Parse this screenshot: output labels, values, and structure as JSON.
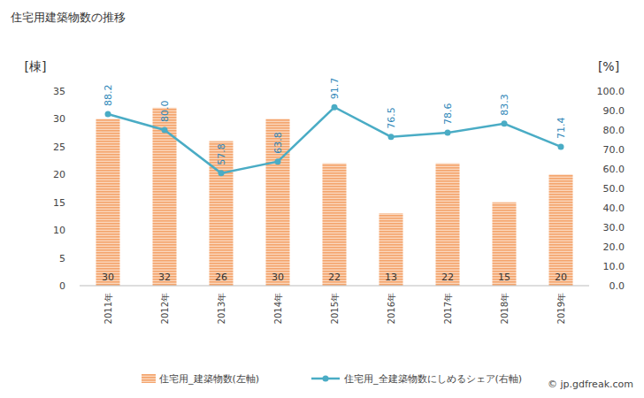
{
  "chart_data": {
    "type": "bar",
    "title": "住宅用建築物数の推移",
    "y_label": "[棟]",
    "y2_label": "[%]",
    "categories": [
      "2011年",
      "2012年",
      "2013年",
      "2014年",
      "2015年",
      "2016年",
      "2017年",
      "2018年",
      "2019年"
    ],
    "series": [
      {
        "name": "住宅用_建築物数(左軸)",
        "type": "bar",
        "color": "#f4a46c",
        "data_labels": true,
        "values": [
          30,
          32,
          26,
          30,
          22,
          13,
          22,
          15,
          20
        ]
      },
      {
        "name": "住宅用_全建築物数にしめるシェア(右軸)",
        "type": "line",
        "color": "#4aacc5",
        "marker": "circle",
        "axis": "y2",
        "data_labels": true,
        "values": [
          88.2,
          80.0,
          57.8,
          63.8,
          91.7,
          76.5,
          78.6,
          83.3,
          71.4
        ],
        "value_labels": [
          "88.2",
          "80.0",
          "57.8",
          "63.8",
          "91.7",
          "76.5",
          "78.6",
          "83.3",
          "71.4"
        ]
      }
    ],
    "ylim": [
      0,
      35
    ],
    "yticks": [
      0,
      5,
      10,
      15,
      20,
      25,
      30,
      35
    ],
    "y2lim": [
      0,
      100
    ],
    "y2ticks": [
      {
        "value": 0,
        "label": "0.0"
      },
      {
        "value": 10,
        "label": "10.0"
      },
      {
        "value": 20,
        "label": "20.0"
      },
      {
        "value": 30,
        "label": "30.0"
      },
      {
        "value": 40,
        "label": "40.0"
      },
      {
        "value": 50,
        "label": "50.0"
      },
      {
        "value": 60,
        "label": "60.0"
      },
      {
        "value": 70,
        "label": "70.0"
      },
      {
        "value": 80,
        "label": "80.0"
      },
      {
        "value": 90,
        "label": "90.0"
      },
      {
        "value": 100,
        "label": "100.0"
      }
    ],
    "grid": false,
    "legend": "bottom",
    "source": "© jp.gdfreak.com"
  }
}
